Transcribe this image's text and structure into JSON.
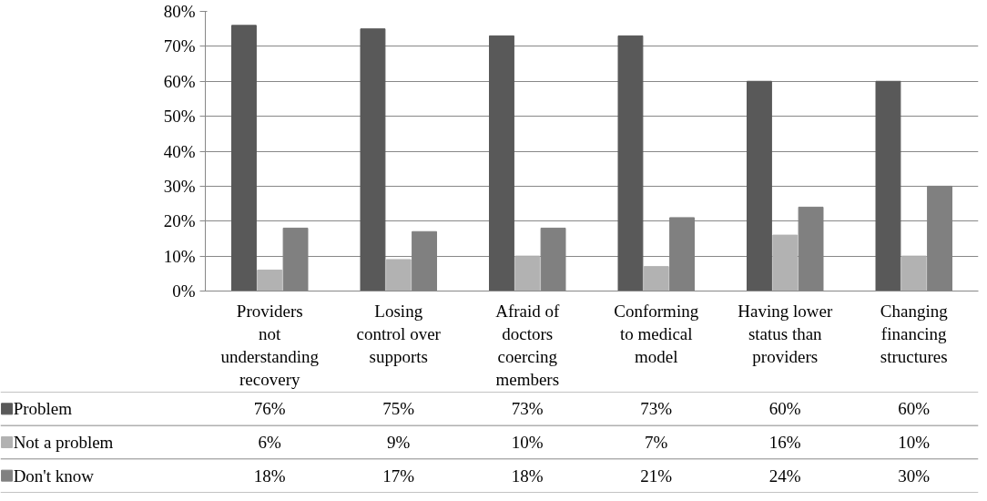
{
  "chart_data": {
    "type": "bar",
    "categories": [
      "Providers not understanding recovery",
      "Losing control over supports",
      "Afraid of doctors coercing members",
      "Conforming to medical model",
      "Having lower status than providers",
      "Changing financing structures"
    ],
    "series": [
      {
        "name": "Problem",
        "color": "#595959",
        "values": [
          76,
          75,
          73,
          73,
          60,
          60
        ],
        "value_labels": [
          "76%",
          "75%",
          "73%",
          "73%",
          "60%",
          "60%"
        ]
      },
      {
        "name": "Not a problem",
        "color": "#b2b2b2",
        "values": [
          6,
          9,
          10,
          7,
          16,
          10
        ],
        "value_labels": [
          "6%",
          "9%",
          "10%",
          "7%",
          "16%",
          "10%"
        ]
      },
      {
        "name": "Don't know",
        "color": "#808080",
        "values": [
          18,
          17,
          18,
          21,
          24,
          30
        ],
        "value_labels": [
          "18%",
          "17%",
          "18%",
          "21%",
          "24%",
          "30%"
        ]
      }
    ],
    "ylim": [
      0,
      80
    ],
    "yticks": [
      {
        "value": 0,
        "label": "0%"
      },
      {
        "value": 10,
        "label": "10%"
      },
      {
        "value": 20,
        "label": "20%"
      },
      {
        "value": 30,
        "label": "30%"
      },
      {
        "value": 40,
        "label": "40%"
      },
      {
        "value": 50,
        "label": "50%"
      },
      {
        "value": 60,
        "label": "60%"
      },
      {
        "value": 70,
        "label": "70%"
      },
      {
        "value": 80,
        "label": "80%"
      }
    ],
    "grid": "y",
    "legend": "bottom"
  }
}
